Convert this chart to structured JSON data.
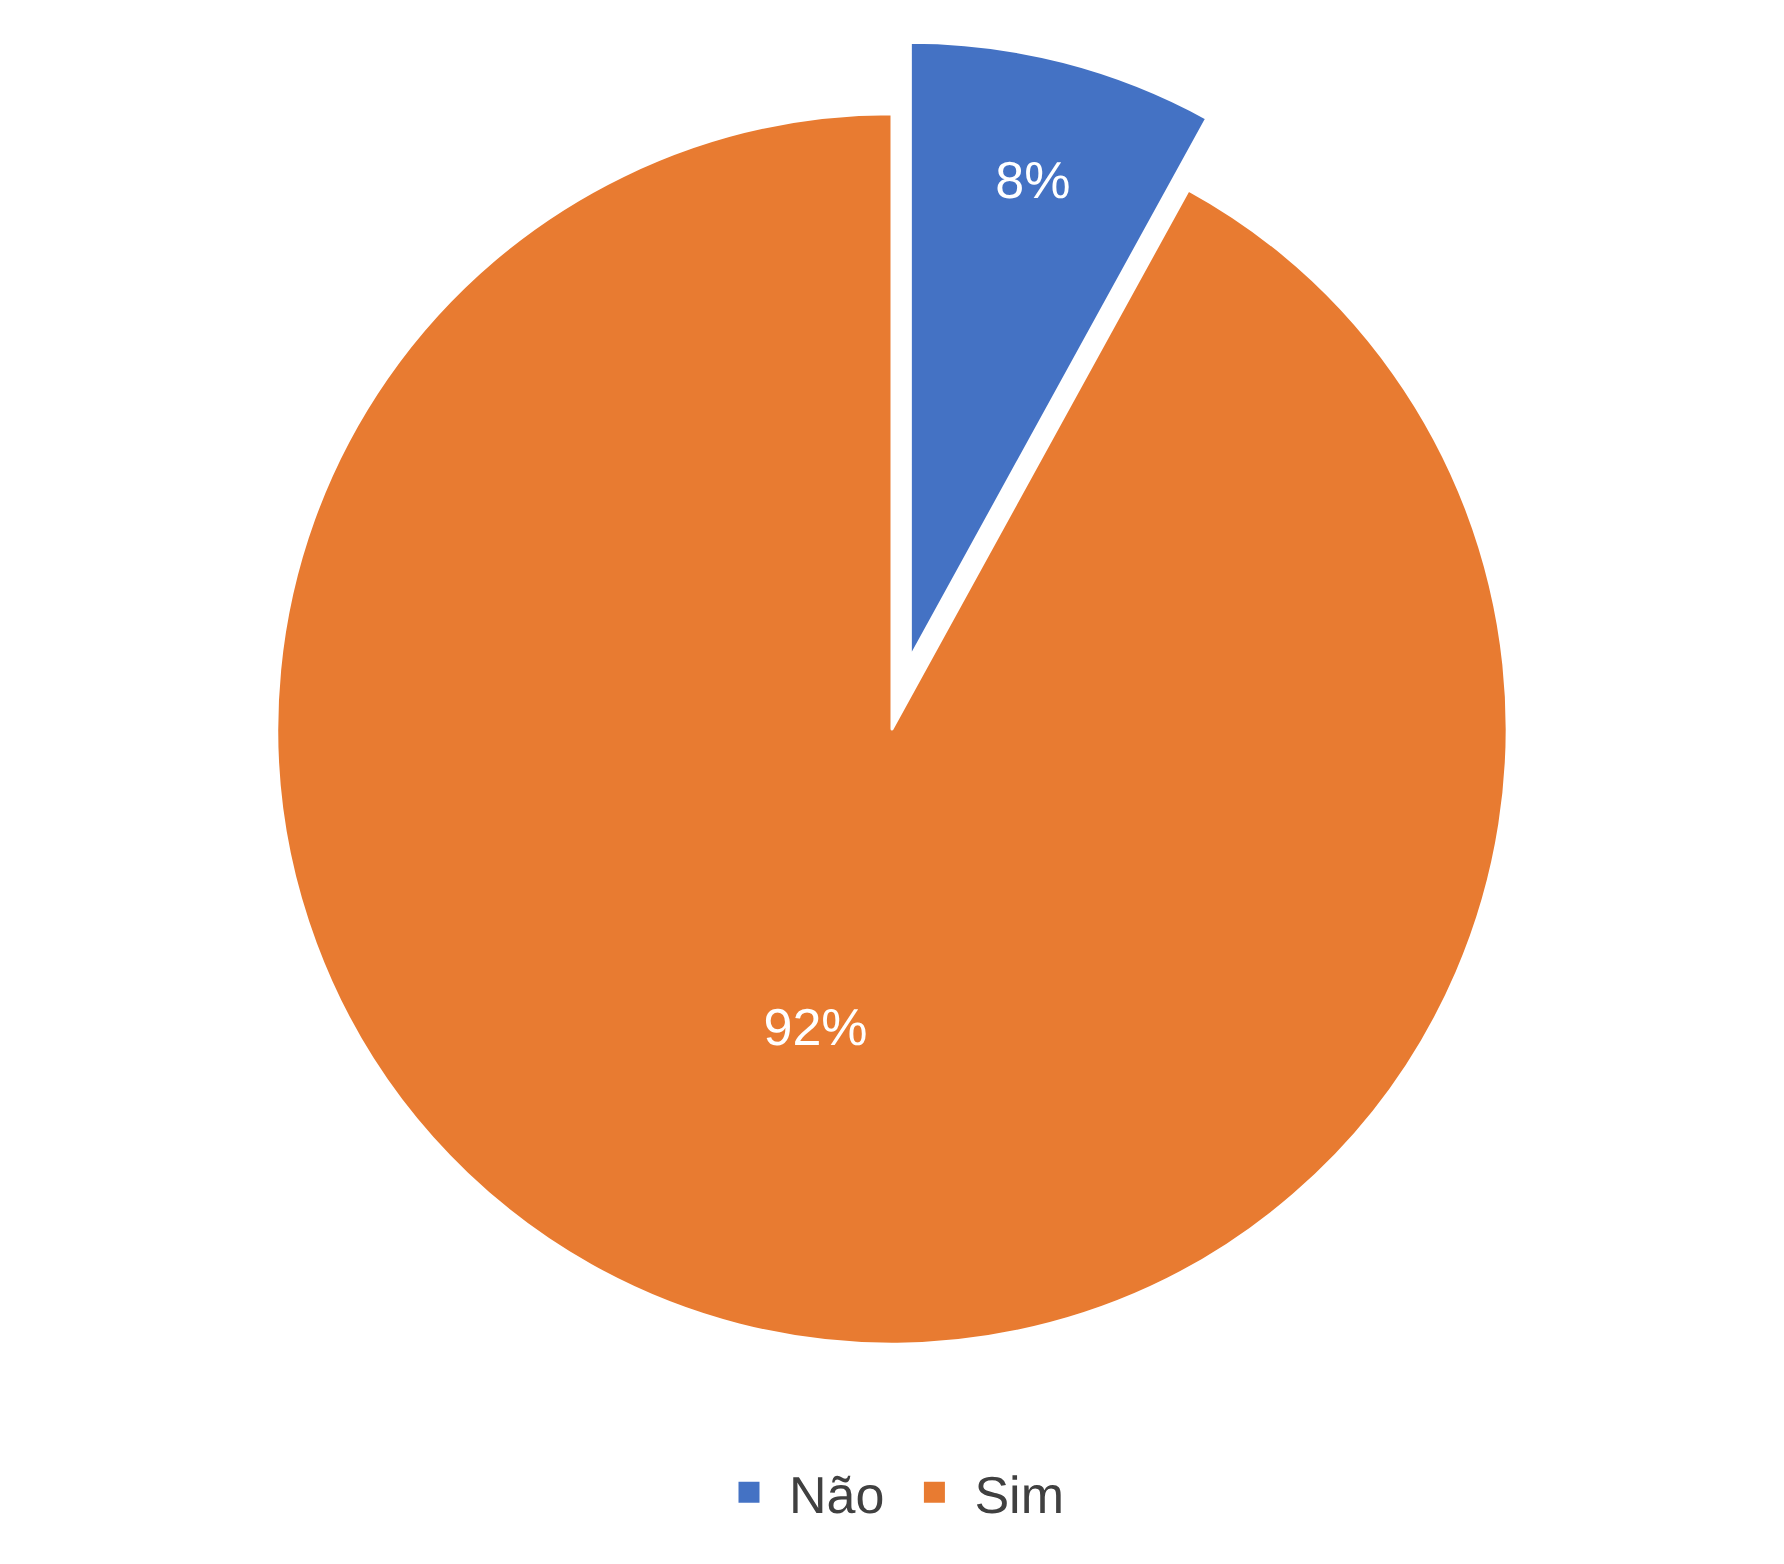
{
  "chart_data": {
    "type": "pie",
    "categories": [
      "Não",
      "Sim"
    ],
    "values": [
      8,
      92
    ],
    "colors": [
      "#4472c4",
      "#e87b31"
    ],
    "value_labels": [
      "8%",
      "92%"
    ],
    "legend": "bottom"
  }
}
